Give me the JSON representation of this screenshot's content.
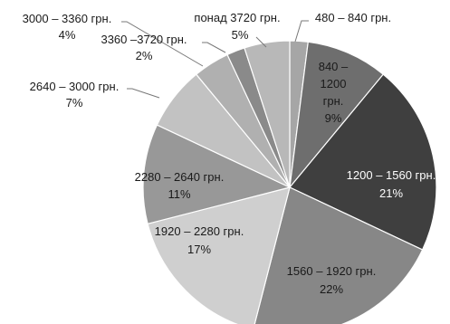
{
  "chart_data": {
    "type": "pie",
    "title": "",
    "categories": [
      "480 – 840 грн.",
      "840 – 1200 грн.",
      "1200 – 1560 грн.",
      "1560 – 1920 грн.",
      "1920 – 2280 грн.",
      "2280 – 2640 грн.",
      "2640 – 3000 грн.",
      "3000 – 3360 грн.",
      "3360 –3720 грн.",
      "понад 3720 грн."
    ],
    "values": [
      2,
      9,
      21,
      22,
      17,
      11,
      7,
      4,
      2,
      5
    ],
    "value_labels": [
      "2%",
      "9%",
      "21%",
      "22%",
      "17%",
      "11%",
      "7%",
      "4%",
      "2%",
      "5%"
    ],
    "colors": [
      "#a6a6a6",
      "#6e6e6e",
      "#3f3f3f",
      "#878787",
      "#cfcfcf",
      "#989898",
      "#c2c2c2",
      "#b0b0b0",
      "#8a8a8a",
      "#b8b8b8"
    ],
    "legend": "none"
  }
}
